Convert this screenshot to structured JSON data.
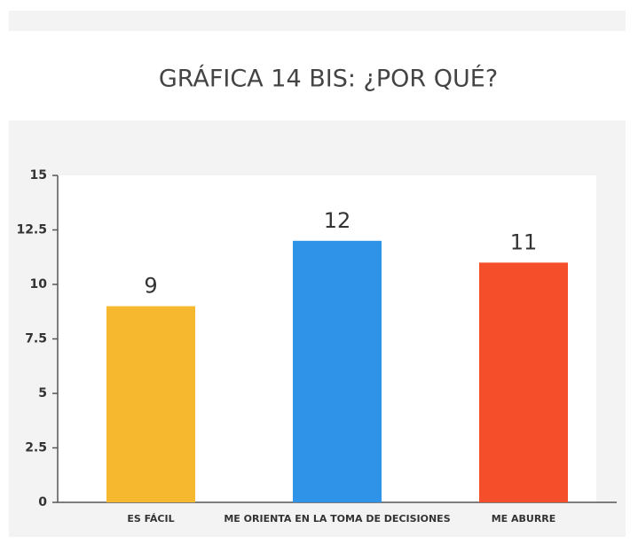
{
  "chart_data": {
    "type": "bar",
    "title": "GRÁFICA 14 BIS: ¿POR QUÉ?",
    "categories": [
      "ES FÁCIL",
      "ME ORIENTA EN LA TOMA DE DECISIONES",
      "ME ABURRE"
    ],
    "values": [
      9,
      12,
      11
    ],
    "colors": [
      "#f5b82e",
      "#2f93e8",
      "#f44e2a"
    ],
    "ylim": [
      0,
      15
    ],
    "yticks": [
      0,
      2.5,
      5,
      7.5,
      10,
      12.5,
      15
    ],
    "grid": false
  }
}
